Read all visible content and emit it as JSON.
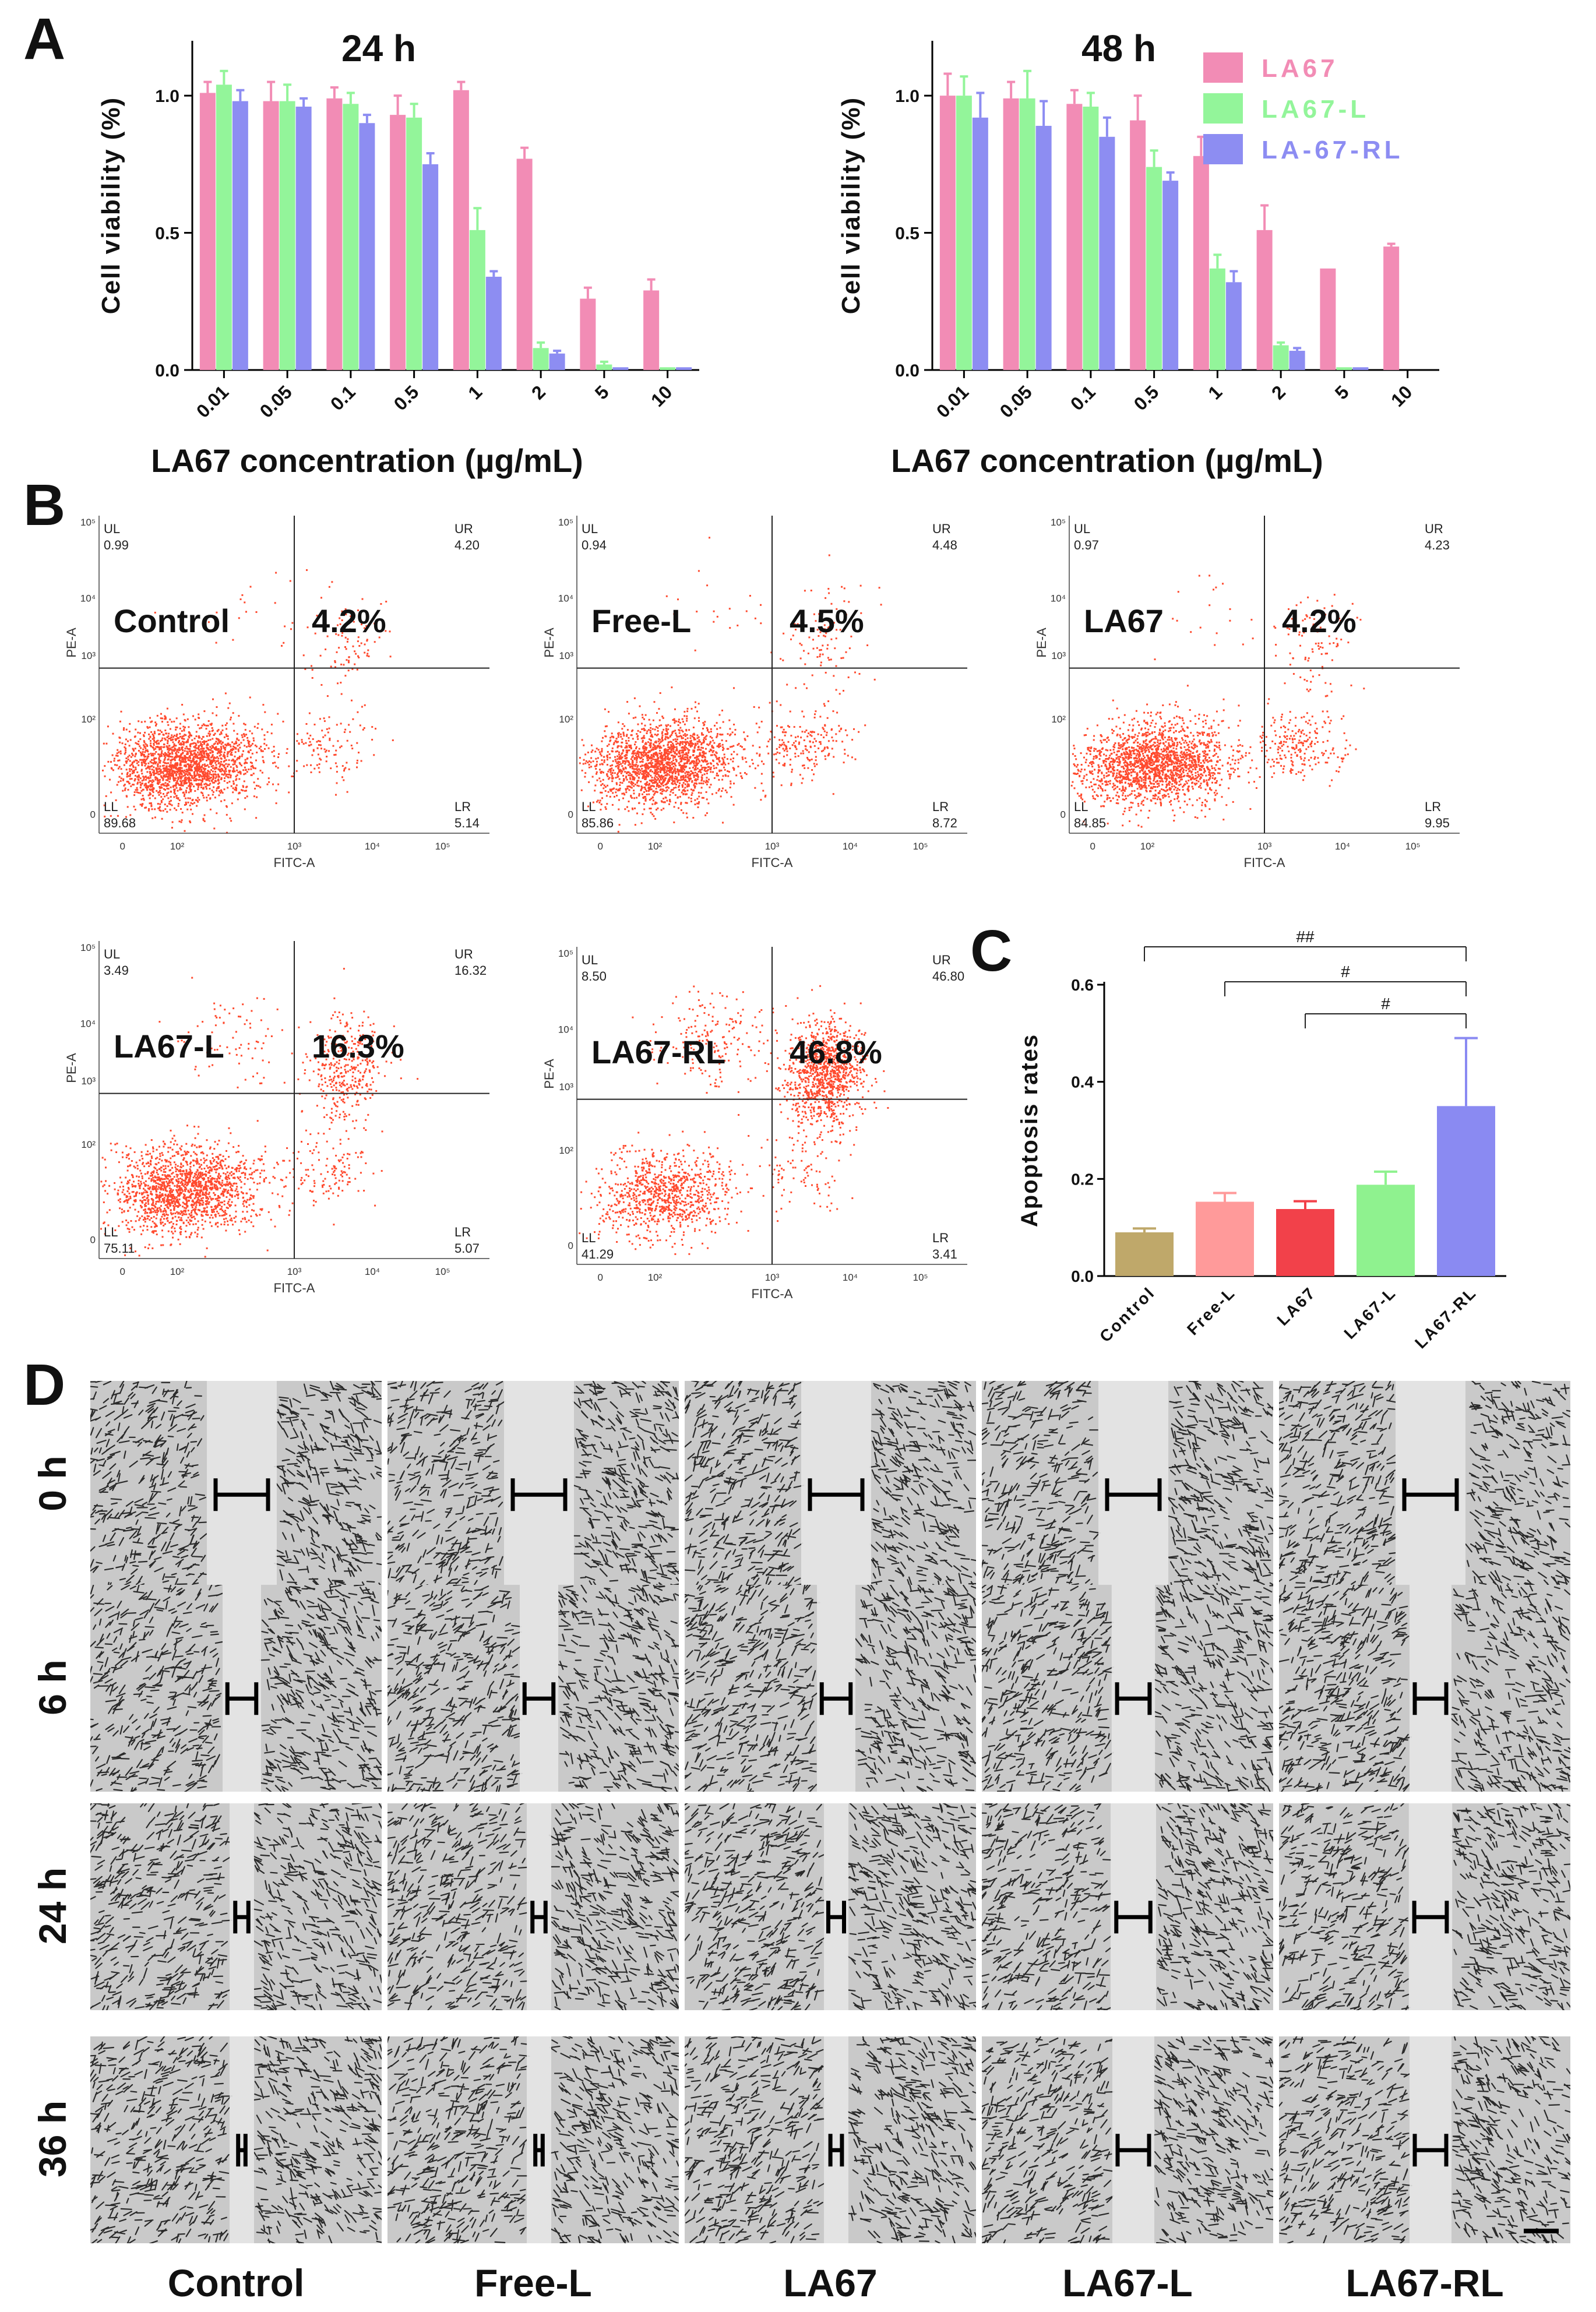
{
  "panels": {
    "a": "A",
    "b": "B",
    "c": "C",
    "d": "D"
  },
  "colors": {
    "LA67": "#f28cb5",
    "LA67-L": "#93f59a",
    "LA-67-RL": "#8d8df2",
    "flow_dots": "#ff4a2e",
    "apoptosis": [
      "#bfa86a",
      "#ff9a9a",
      "#f2414a",
      "#8ff28f",
      "#8a8af2"
    ]
  },
  "viability_legend": [
    "LA67",
    "LA67-L",
    "LA-67-RL"
  ],
  "chart_data": [
    {
      "type": "bar",
      "title": "24 h",
      "xlabel": "LA67 concentration (µg/mL)",
      "ylabel": "Cell viability (%)",
      "ylim": [
        0,
        1.2
      ],
      "yticks": [
        "0.0",
        "0.5",
        "1.0"
      ],
      "categories": [
        "0.01",
        "0.05",
        "0.1",
        "0.5",
        "1",
        "2",
        "5",
        "10"
      ],
      "series": [
        {
          "name": "LA67",
          "values": [
            1.01,
            0.98,
            0.99,
            0.93,
            1.02,
            0.77,
            0.26,
            0.29
          ],
          "errors": [
            0.04,
            0.07,
            0.04,
            0.07,
            0.03,
            0.04,
            0.04,
            0.04
          ]
        },
        {
          "name": "LA67-L",
          "values": [
            1.04,
            0.98,
            0.97,
            0.92,
            0.51,
            0.08,
            0.02,
            0.01
          ],
          "errors": [
            0.05,
            0.06,
            0.04,
            0.05,
            0.08,
            0.02,
            0.01,
            0.0
          ]
        },
        {
          "name": "LA-67-RL",
          "values": [
            0.98,
            0.96,
            0.9,
            0.75,
            0.34,
            0.06,
            0.01,
            0.01
          ],
          "errors": [
            0.04,
            0.03,
            0.03,
            0.04,
            0.02,
            0.01,
            0.0,
            0.0
          ]
        }
      ],
      "grid": false
    },
    {
      "type": "bar",
      "title": "48 h",
      "xlabel": "LA67 concentration (µg/mL)",
      "ylabel": "Cell viability (%)",
      "ylim": [
        0,
        1.2
      ],
      "yticks": [
        "0.0",
        "0.5",
        "1.0"
      ],
      "categories": [
        "0.01",
        "0.05",
        "0.1",
        "0.5",
        "1",
        "2",
        "5",
        "10"
      ],
      "series": [
        {
          "name": "LA67",
          "values": [
            1.0,
            0.99,
            0.97,
            0.91,
            0.78,
            0.51,
            0.37,
            0.45
          ],
          "errors": [
            0.08,
            0.06,
            0.05,
            0.09,
            0.07,
            0.09,
            0.0,
            0.01
          ]
        },
        {
          "name": "LA67-L",
          "values": [
            1.0,
            0.99,
            0.96,
            0.74,
            0.37,
            0.09,
            0.01,
            0.0
          ],
          "errors": [
            0.07,
            0.1,
            0.05,
            0.06,
            0.05,
            0.01,
            0.0,
            0.0
          ]
        },
        {
          "name": "LA-67-RL",
          "values": [
            0.92,
            0.89,
            0.85,
            0.69,
            0.32,
            0.07,
            0.01,
            0.0
          ],
          "errors": [
            0.09,
            0.09,
            0.07,
            0.03,
            0.04,
            0.01,
            0.0,
            0.0
          ]
        }
      ],
      "grid": false
    },
    {
      "type": "bar",
      "title": "",
      "xlabel": "",
      "ylabel": "Apoptosis rates",
      "ylim": [
        0,
        0.6
      ],
      "yticks": [
        "0.0",
        "0.2",
        "0.4",
        "0.6"
      ],
      "categories": [
        "Control",
        "Free-L",
        "LA67",
        "LA67-L",
        "LA67-RL"
      ],
      "values": [
        0.09,
        0.153,
        0.138,
        0.188,
        0.35
      ],
      "errors": [
        0.008,
        0.018,
        0.016,
        0.027,
        0.14
      ],
      "significance": [
        {
          "from": "Control",
          "to": "LA67-RL",
          "label": "##"
        },
        {
          "from": "Free-L",
          "to": "LA67-RL",
          "label": "#"
        },
        {
          "from": "LA67",
          "to": "LA67-RL",
          "label": "#"
        }
      ],
      "grid": false
    }
  ],
  "flow_plots": [
    {
      "name": "Control",
      "percent": "4.2%",
      "ul": "0.99",
      "ur": "4.20",
      "ll": "89.68",
      "lr": "5.14"
    },
    {
      "name": "Free-L",
      "percent": "4.5%",
      "ul": "0.94",
      "ur": "4.48",
      "ll": "85.86",
      "lr": "8.72"
    },
    {
      "name": "LA67",
      "percent": "4.2%",
      "ul": "0.97",
      "ur": "4.23",
      "ll": "84.85",
      "lr": "9.95"
    },
    {
      "name": "LA67-L",
      "percent": "16.3%",
      "ul": "3.49",
      "ur": "16.32",
      "ll": "75.11",
      "lr": "5.07"
    },
    {
      "name": "LA67-RL",
      "percent": "46.8%",
      "ul": "8.50",
      "ur": "46.80",
      "ll": "41.29",
      "lr": "3.41"
    }
  ],
  "flow_axes": {
    "x": "FITC-A",
    "y": "PE-A",
    "q_ul": "UL",
    "q_ur": "UR",
    "q_ll": "LL",
    "q_lr": "LR",
    "ticks": [
      "0",
      "10²",
      "10³",
      "10⁴",
      "10⁵"
    ],
    "yticks": [
      "0",
      "10²",
      "10³",
      "10⁴",
      "10⁵"
    ]
  },
  "wound_columns": [
    "Control",
    "Free-L",
    "LA67",
    "LA67-L",
    "LA67-RL"
  ],
  "wound_rows": [
    "0 h",
    "6 h",
    "24 h",
    "36 h"
  ],
  "wound_gap_fraction": [
    [
      1.0,
      1.0,
      1.0,
      1.0,
      1.0
    ],
    [
      0.55,
      0.55,
      0.55,
      0.62,
      0.6
    ],
    [
      0.25,
      0.25,
      0.3,
      0.65,
      0.62
    ],
    [
      0.14,
      0.14,
      0.22,
      0.6,
      0.6
    ]
  ]
}
